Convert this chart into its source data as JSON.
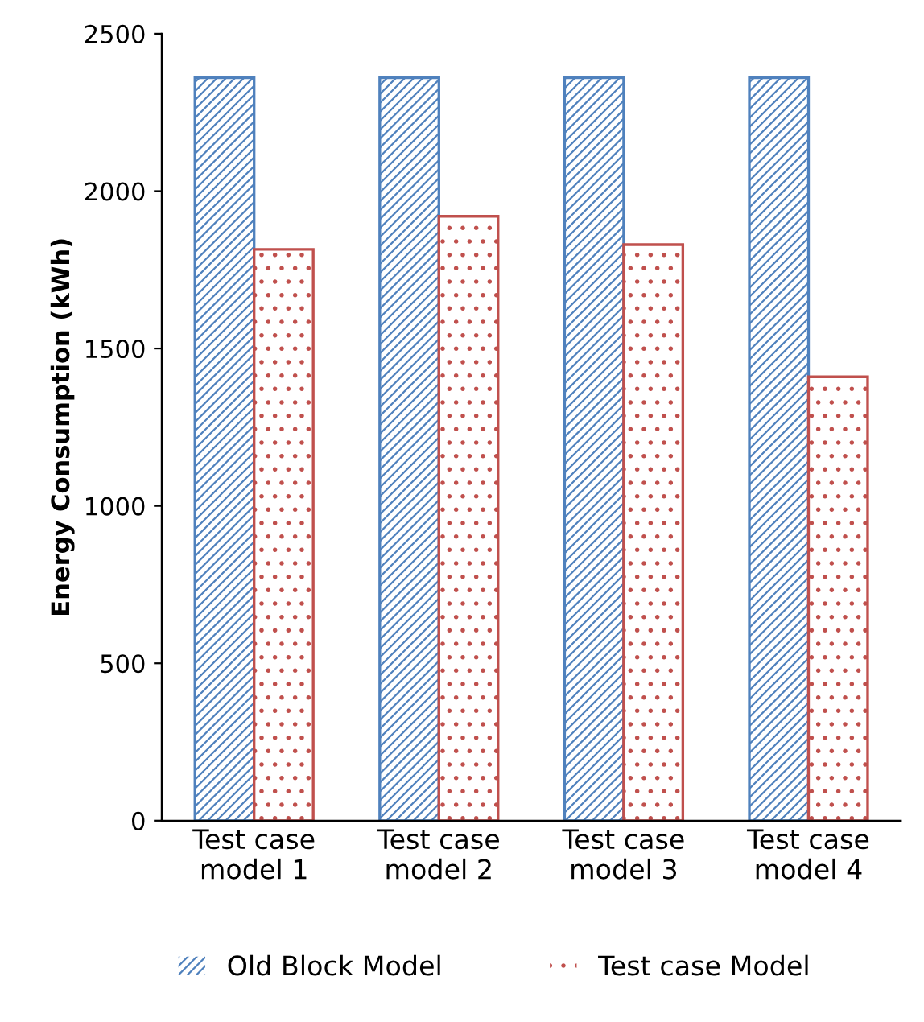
{
  "chart_data": {
    "type": "bar",
    "ylabel": "Energy Consumption (kWh)",
    "categories": [
      "Test case\nmodel 1",
      "Test case\nmodel 2",
      "Test case\nmodel 3",
      "Test case\nmodel 4"
    ],
    "series": [
      {
        "name": "Old Block Model",
        "color": "#4f81bd",
        "values": [
          2360,
          2360,
          2360,
          2360
        ]
      },
      {
        "name": "Test case Model",
        "color": "#c0504d",
        "values": [
          1815,
          1920,
          1830,
          1410
        ]
      }
    ],
    "ylim": [
      0,
      2500
    ],
    "yticks": [
      0,
      500,
      1000,
      1500,
      2000,
      2500
    ],
    "grid": false,
    "legend": "bottom"
  }
}
